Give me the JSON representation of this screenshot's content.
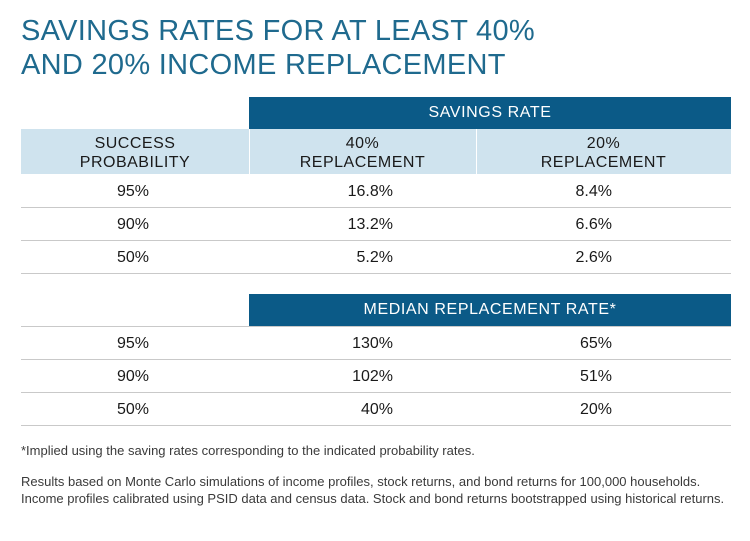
{
  "title": {
    "line1": "SAVINGS RATES FOR AT LEAST 40%",
    "line2": "AND 20% INCOME REPLACEMENT"
  },
  "table1": {
    "group_header": "SAVINGS RATE",
    "col_headers": {
      "c1_line1": "SUCCESS",
      "c1_line2": "PROBABILITY",
      "c2_line1": "40%",
      "c2_line2": "REPLACEMENT",
      "c3_line1": "20%",
      "c3_line2": "REPLACEMENT"
    },
    "rows": [
      {
        "prob": "95%",
        "r40": "16.8%",
        "r20": "8.4%"
      },
      {
        "prob": "90%",
        "r40": "13.2%",
        "r20": "6.6%"
      },
      {
        "prob": "50%",
        "r40": "5.2%",
        "r20": "2.6%"
      }
    ]
  },
  "table2": {
    "group_header": "MEDIAN REPLACEMENT RATE*",
    "rows": [
      {
        "prob": "95%",
        "r40": "130%",
        "r20": "65%"
      },
      {
        "prob": "90%",
        "r40": "102%",
        "r20": "51%"
      },
      {
        "prob": "50%",
        "r40": "40%",
        "r20": "20%"
      }
    ]
  },
  "footnotes": {
    "note1": "*Implied using the saving rates corresponding to the indicated probability rates.",
    "note2": "Results based on Monte Carlo simulations of income profiles, stock returns, and bond returns for 100,000 households.   Income profiles calibrated using PSID data and census data. Stock and bond returns bootstrapped using historical returns."
  }
}
